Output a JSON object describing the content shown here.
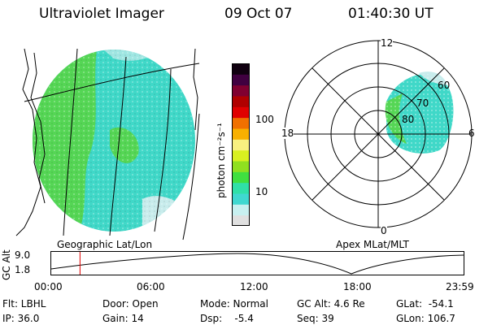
{
  "header": {
    "title": "Ultraviolet Imager",
    "date": "09 Oct 07",
    "time": "01:40:30 UT"
  },
  "colorbar": {
    "label": "photon cm⁻²s⁻¹",
    "tick_100": "100",
    "tick_10": "10",
    "scale": "log",
    "colors": [
      "#e0e0e0",
      "#c8f0f0",
      "#40d8d0",
      "#30e0a8",
      "#40e040",
      "#90e020",
      "#d8f020",
      "#f8f080",
      "#f8b000",
      "#f07000",
      "#e00000",
      "#b00000",
      "#800030",
      "#400040",
      "#100010"
    ]
  },
  "maps": {
    "left_label": "Geographic Lat/Lon",
    "right_label": "Apex MLat/MLT",
    "left_colors": {
      "green": "#55d655",
      "cyan": "#40d8c8",
      "light": "#c8ecec"
    }
  },
  "polar": {
    "mlt_12": "12",
    "mlt_18": "18",
    "mlt_6": "6",
    "mlt_0": "0",
    "lat_60": "60",
    "lat_70": "70",
    "lat_80": "80"
  },
  "timeline": {
    "ylabel": "GC Alt",
    "y_max": "9.0",
    "y_min": "1.8",
    "t0": "00:00",
    "t1": "06:00",
    "t2": "12:00",
    "t3": "18:00",
    "t4": "23:59",
    "current_time_hours": 1.675,
    "marker_color": "#e00000"
  },
  "status": {
    "flt": "Flt: LBHL",
    "ip": "IP: 36.0",
    "door": "Door: Open",
    "gain": "Gain: 14",
    "mode": "Mode: Normal",
    "dsp": "Dsp:    -5.4",
    "gcalt": "GC Alt: 4.6 Re",
    "seq": "Seq: 39",
    "glat": "GLat:  -54.1",
    "glon": "GLon: 106.7"
  }
}
